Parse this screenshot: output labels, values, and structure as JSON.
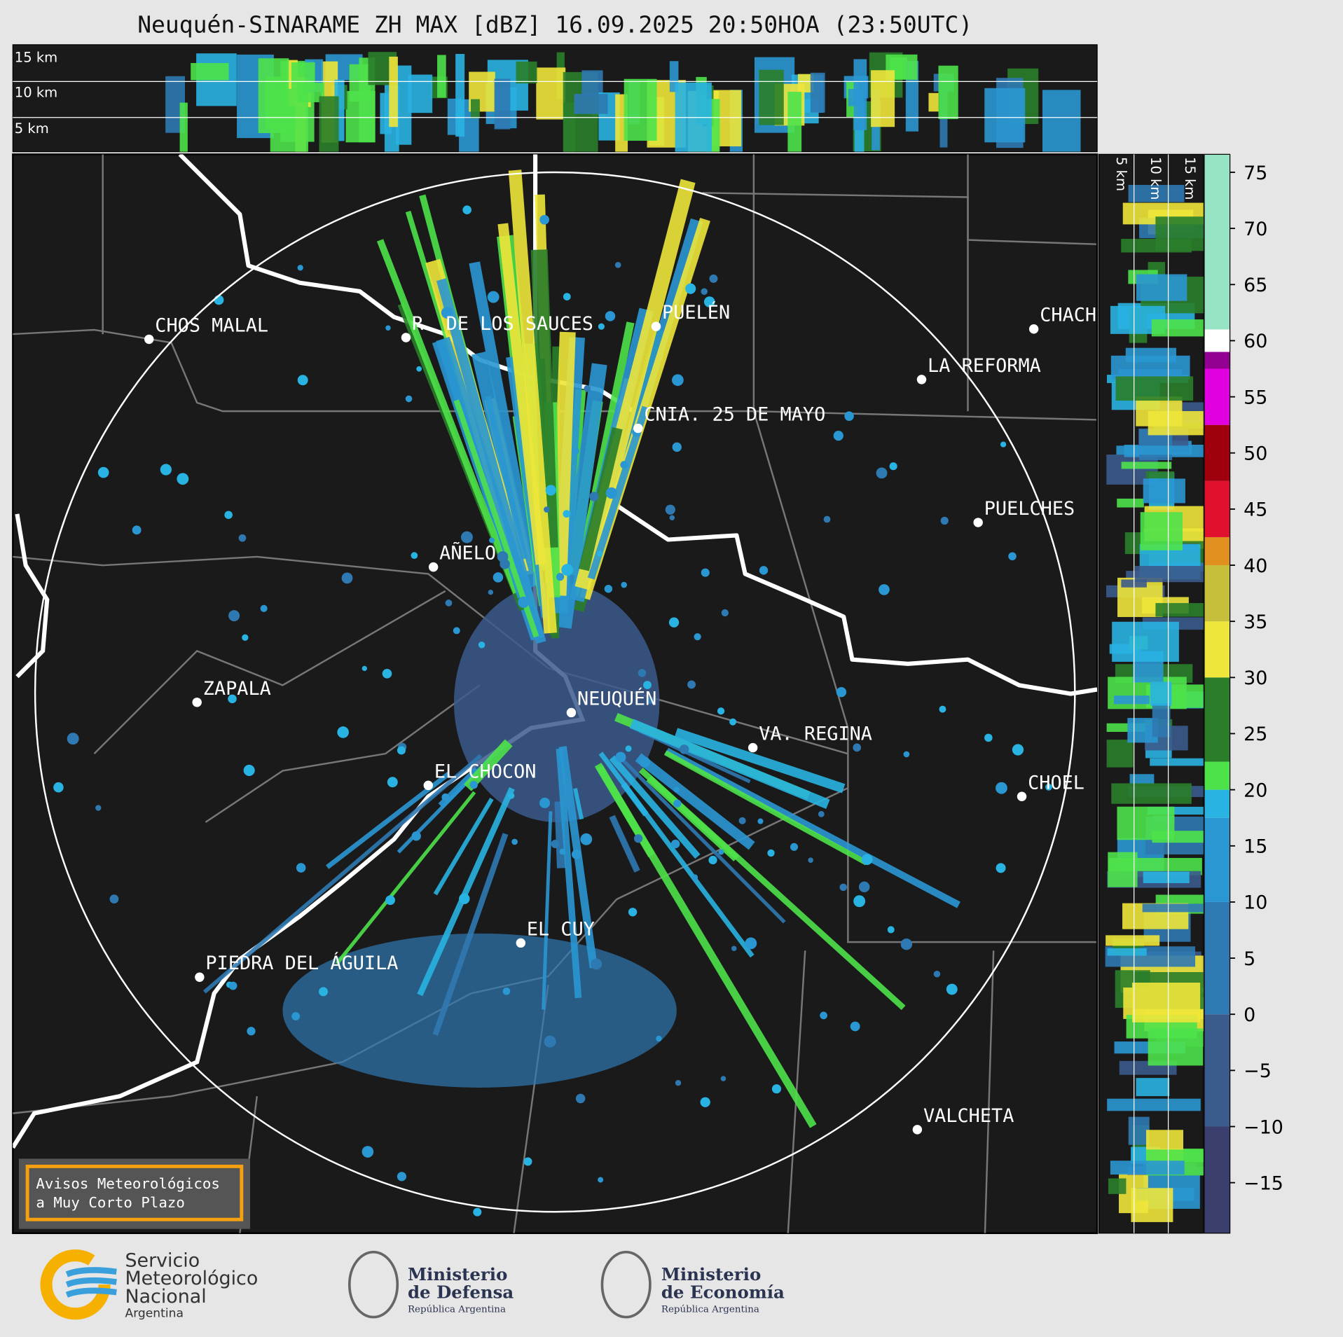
{
  "title": "Neuquén-SINARAME ZH MAX [dBZ] 16.09.2025 20:50HOA (23:50UTC)",
  "height_panel": {
    "labels": [
      "15 km",
      "10 km",
      "5 km"
    ]
  },
  "side_panel": {
    "labels": [
      "5 km",
      "10 km",
      "15 km"
    ]
  },
  "cities": [
    "CHOS MALAL",
    "R. DE LOS SAUCES",
    "PUELÉN",
    "CHACH",
    "LA REFORMA",
    "CNIA. 25 DE MAYO",
    "PUELCHES",
    "AÑELO",
    "ZAPALA",
    "NEUQUÉN",
    "VA. REGINA",
    "EL CHOCON",
    "CHOEL",
    "EL CUY",
    "PIEDRA DEL ÁGUILA",
    "VALCHETA"
  ],
  "colorbar": {
    "range": [
      -19.5,
      76.6
    ],
    "ticks": [
      {
        "value": -15,
        "label": "−15"
      },
      {
        "value": -10,
        "label": "−10"
      },
      {
        "value": -5,
        "label": "−5"
      },
      0,
      5,
      10,
      15,
      20,
      25,
      30,
      35,
      40,
      45,
      50,
      55,
      60,
      65,
      70,
      75
    ],
    "levels": [
      {
        "from": -19.5,
        "to": -10,
        "color": "#3b3f6e"
      },
      {
        "from": -10,
        "to": 0,
        "color": "#3b5b8c"
      },
      {
        "from": 0,
        "to": 10,
        "color": "#2f79b2"
      },
      {
        "from": 10,
        "to": 17.5,
        "color": "#2a97d2"
      },
      {
        "from": 17.5,
        "to": 20,
        "color": "#29b3e2"
      },
      {
        "from": 20,
        "to": 22.5,
        "color": "#4ee24a"
      },
      {
        "from": 22.5,
        "to": 30,
        "color": "#2a7e2a"
      },
      {
        "from": 30,
        "to": 35,
        "color": "#eee63a"
      },
      {
        "from": 35,
        "to": 40,
        "color": "#c6bf3c"
      },
      {
        "from": 40,
        "to": 42.5,
        "color": "#e0901e"
      },
      {
        "from": 42.5,
        "to": 47.5,
        "color": "#e0102e"
      },
      {
        "from": 47.5,
        "to": 52.5,
        "color": "#a0000e"
      },
      {
        "from": 52.5,
        "to": 57.5,
        "color": "#e000e0"
      },
      {
        "from": 57.5,
        "to": 59,
        "color": "#920092"
      },
      {
        "from": 59,
        "to": 61,
        "color": "#ffffff"
      },
      {
        "from": 61,
        "to": 76.6,
        "color": "#96e4c4"
      }
    ]
  },
  "warning_box": {
    "lines": [
      "Avisos Meteorológicos",
      "a Muy Corto Plazo"
    ]
  },
  "logos": {
    "smn": [
      "Servicio",
      "Meteorológico",
      "Nacional",
      "Argentina"
    ],
    "defensa": [
      "Ministerio",
      "de Defensa",
      "República Argentina"
    ],
    "economia": [
      "Ministerio",
      "de Economía",
      "República Argentina"
    ]
  }
}
